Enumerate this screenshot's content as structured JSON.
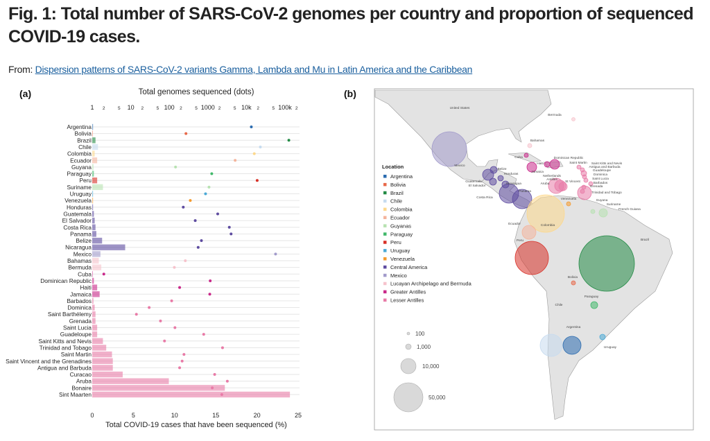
{
  "figure": {
    "title": "Fig. 1: Total number of SARS-CoV-2 genomes per country and proportion of sequenced COVID-19 cases.",
    "from_label": "From:",
    "from_link": "Dispersion patterns of SARS-CoV-2 variants Gamma, Lambda and Mu in Latin America and the Caribbean",
    "panel_a_label": "(a)",
    "panel_b_label": "(b)"
  },
  "chart_data": [
    {
      "type": "bar",
      "title": "",
      "xlabel": "Total COVID-19 cases that have been sequenced (%)",
      "x2label": "Total genomes sequenced (dots)",
      "xlim": [
        0,
        25
      ],
      "xticks": [
        "0",
        "5",
        "10",
        "15",
        "20",
        "25"
      ],
      "x2scale": "log",
      "x2ticks": [
        "1",
        "2",
        "5",
        "10",
        "2",
        "5",
        "100",
        "2",
        "5",
        "1000",
        "2",
        "5",
        "10k",
        "2",
        "5",
        "100k",
        "2"
      ],
      "grid": true,
      "orientation": "horizontal",
      "categories": [
        "Argentina",
        "Bolivia",
        "Brazil",
        "Chile",
        "Colombia",
        "Ecuador",
        "Guyana",
        "Paraguay",
        "Peru",
        "Suriname",
        "Uruguay",
        "Venezuela",
        "Honduras",
        "Guatemala",
        "El Salvador",
        "Costa Rica",
        "Panama",
        "Belize",
        "Nicaragua",
        "Mexico",
        "Bahamas",
        "Bermuda",
        "Cuba",
        "Dominican Republic",
        "Haiti",
        "Jamaica",
        "Barbados",
        "Dominica",
        "Saint Barthélemy",
        "Grenada",
        "Saint Lucia",
        "Guadeloupe",
        "Saint Kitts and Nevis",
        "Trinidad and Tobago",
        "Saint Martin",
        "Saint Vincent and the Grenadines",
        "Antigua and Barbuda",
        "Curacao",
        "Aruba",
        "Bonaire",
        "Sint Maarten"
      ],
      "groups": [
        "Argentina",
        "Bolivia",
        "Brazil",
        "Chile",
        "Colombia",
        "Ecuador",
        "Guyanas",
        "Paraguay",
        "Peru",
        "Guyanas",
        "Uruguay",
        "Venezuela",
        "Central America",
        "Central America",
        "Central America",
        "Central America",
        "Central America",
        "Central America",
        "Central America",
        "Mexico",
        "Lucayan Archipelago and  Bermuda",
        "Lucayan Archipelago and  Bermuda",
        "Greater Antilles",
        "Greater Antilles",
        "Greater Antilles",
        "Greater Antilles",
        "Lesser Antilles",
        "Lesser Antilles",
        "Lesser Antilles",
        "Lesser Antilles",
        "Lesser Antilles",
        "Lesser Antilles",
        "Lesser Antilles",
        "Lesser Antilles",
        "Lesser Antilles",
        "Lesser Antilles",
        "Lesser Antilles",
        "Lesser Antilles",
        "Lesser Antilles",
        "Lesser Antilles",
        "Lesser Antilles"
      ],
      "series": [
        {
          "kind": "bars",
          "values": [
            0.1,
            0.05,
            0.4,
            0.7,
            0.3,
            0.6,
            0.15,
            0.2,
            0.6,
            1.3,
            0.1,
            0.1,
            0.1,
            0.2,
            0.3,
            0.4,
            0.5,
            1.2,
            4.0,
            1.0,
            0.8,
            1.1,
            0.05,
            0.2,
            0.6,
            0.9,
            0.15,
            0.3,
            0.4,
            0.4,
            0.6,
            0.6,
            1.3,
            1.7,
            2.4,
            2.5,
            2.5,
            3.7,
            9.3,
            16.1,
            24.0
          ]
        },
        {
          "kind": "dots",
          "values": [
            13400,
            270,
            126000,
            23000,
            16000,
            5100,
            145,
            1260,
            19000,
            1070,
            870,
            350,
            230,
            1800,
            470,
            3600,
            4000,
            680,
            560,
            57000,
            260,
            135,
            2,
            1150,
            185,
            1120,
            115,
            30,
            14,
            59,
            140,
            780,
            75,
            2400,
            240,
            215,
            185,
            1500,
            3200,
            1300,
            2300
          ]
        }
      ]
    },
    {
      "type": "bubble-map",
      "legend_title": "Location",
      "legend": [
        {
          "name": "Argentina",
          "color": "#2b6cb0"
        },
        {
          "name": "Bolivia",
          "color": "#e8694a"
        },
        {
          "name": "Brazil",
          "color": "#238b45"
        },
        {
          "name": "Chile",
          "color": "#c6dbef"
        },
        {
          "name": "Colombia",
          "color": "#fdd88c"
        },
        {
          "name": "Ecuador",
          "color": "#f4b49c"
        },
        {
          "name": "Guyanas",
          "color": "#b7e2b1"
        },
        {
          "name": "Paraguay",
          "color": "#41b86a"
        },
        {
          "name": "Peru",
          "color": "#d73027"
        },
        {
          "name": "Uruguay",
          "color": "#4aa9d6"
        },
        {
          "name": "Venezuela",
          "color": "#f59b2e"
        },
        {
          "name": "Central America",
          "color": "#5e4ca0"
        },
        {
          "name": "Mexico",
          "color": "#a29bcb"
        },
        {
          "name": "Lucayan Archipelago and  Bermuda",
          "color": "#f6c3cc"
        },
        {
          "name": "Greater Antilles",
          "color": "#c9298a"
        },
        {
          "name": "Lesser Antilles",
          "color": "#e87ba7"
        }
      ],
      "size_legend": [
        "100",
        "1,000",
        "10,000",
        "50,000"
      ],
      "size_legend_values": [
        100,
        1000,
        10000,
        50000
      ],
      "place_labels": [
        "United States",
        "Mexico",
        "Bermuda",
        "Bahamas",
        "Cuba",
        "Haiti",
        "Dominican Republic",
        "Jamaica",
        "Belize",
        "Honduras",
        "Guatemala",
        "El Salvador",
        "Nicaragua",
        "Costa Rica",
        "Panama",
        "Netherlands",
        "Antilles",
        "Aruba",
        "St Vincent",
        "Saint Martin",
        "Saint Kitts and Nevis",
        "Antigua and Barbuda",
        "Guadeloupe",
        "Dominica",
        "Saint Lucia",
        "Barbados",
        "Grenada",
        "Trinidad and Tobago",
        "Venezuela",
        "Guyana",
        "Suriname",
        "French Guiana",
        "Colombia",
        "Ecuador",
        "Peru",
        "Brazil",
        "Bolivia",
        "Paraguay",
        "Chile",
        "Argentina",
        "Uruguay"
      ]
    }
  ]
}
